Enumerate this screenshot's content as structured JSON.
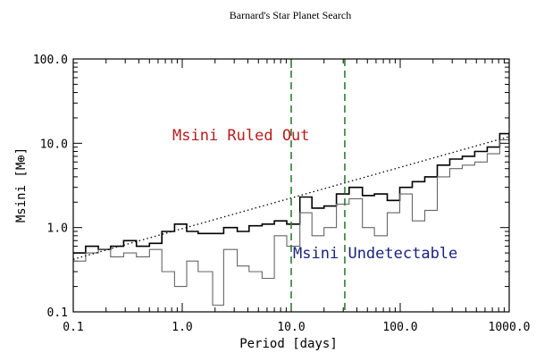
{
  "chart_data": {
    "type": "line",
    "title": "Barnard's Star Planet Search",
    "xlabel": "Period [days]",
    "ylabel": "Msini [M⊕]",
    "xscale": "log",
    "yscale": "log",
    "xlim": [
      0.1,
      1000.0
    ],
    "ylim": [
      0.1,
      100.0
    ],
    "x_ticks": [
      0.1,
      1.0,
      10.0,
      100.0,
      1000.0
    ],
    "x_tick_labels": [
      "0.1",
      "1.0",
      "10.0",
      "100.0",
      "1000.0"
    ],
    "y_ticks": [
      0.1,
      1.0,
      10.0,
      100.0
    ],
    "y_tick_labels": [
      "0.1",
      "1.0",
      "10.0",
      "100.0"
    ],
    "series": [
      {
        "style": "step-black",
        "color": "#000000",
        "x_edges": [
          0.1,
          0.13,
          0.17,
          0.22,
          0.29,
          0.38,
          0.5,
          0.65,
          0.85,
          1.1,
          1.4,
          1.9,
          2.4,
          3.2,
          4.1,
          5.4,
          7.0,
          9.1,
          12,
          15.5,
          20,
          26,
          34,
          45,
          58,
          76,
          99,
          129,
          168,
          219,
          285,
          371,
          483,
          629,
          819,
          1000
        ],
        "values": [
          0.5,
          0.6,
          0.55,
          0.6,
          0.7,
          0.6,
          0.65,
          0.9,
          1.1,
          0.9,
          0.85,
          0.85,
          1.0,
          0.9,
          1.05,
          1.1,
          1.2,
          1.1,
          2.3,
          1.7,
          1.8,
          2.5,
          3.0,
          2.4,
          2.5,
          2.1,
          3.0,
          3.5,
          4.0,
          5.5,
          6.5,
          7.0,
          8.0,
          9.0,
          13.0,
          10.5
        ]
      },
      {
        "style": "step-gray",
        "color": "#666666",
        "x_edges": [
          0.1,
          0.13,
          0.17,
          0.22,
          0.29,
          0.38,
          0.5,
          0.65,
          0.85,
          1.1,
          1.4,
          1.9,
          2.4,
          3.2,
          4.1,
          5.4,
          7.0,
          9.1,
          12,
          15.5,
          20,
          26,
          34,
          45,
          58,
          76,
          99,
          129,
          168,
          219,
          285,
          371,
          483,
          629,
          819,
          1000
        ],
        "values": [
          0.4,
          0.5,
          0.55,
          0.45,
          0.5,
          0.45,
          0.55,
          0.3,
          0.2,
          0.4,
          0.3,
          0.12,
          0.55,
          0.35,
          0.3,
          0.25,
          0.8,
          0.6,
          1.5,
          0.8,
          1.0,
          1.9,
          2.2,
          1.0,
          0.8,
          1.5,
          2.5,
          1.2,
          1.6,
          4.0,
          5.0,
          5.5,
          6.0,
          7.5,
          11.0,
          8.0
        ]
      },
      {
        "style": "dotted",
        "color": "#000000",
        "x": [
          0.1,
          1000.0
        ],
        "y": [
          0.42,
          12.0
        ]
      }
    ],
    "vlines": [
      {
        "x": 10.0,
        "color": "#2e7d32",
        "style": "dashed"
      },
      {
        "x": 31.0,
        "color": "#2e7d32",
        "style": "dashed"
      }
    ],
    "annotations": [
      {
        "text": "Msini Ruled Out",
        "color": "#b71c1c",
        "x": 10.0,
        "y": 12.5
      },
      {
        "text": "Msini Undetectable",
        "color": "#1a237e",
        "x": 11.0,
        "y": 0.5
      }
    ]
  }
}
